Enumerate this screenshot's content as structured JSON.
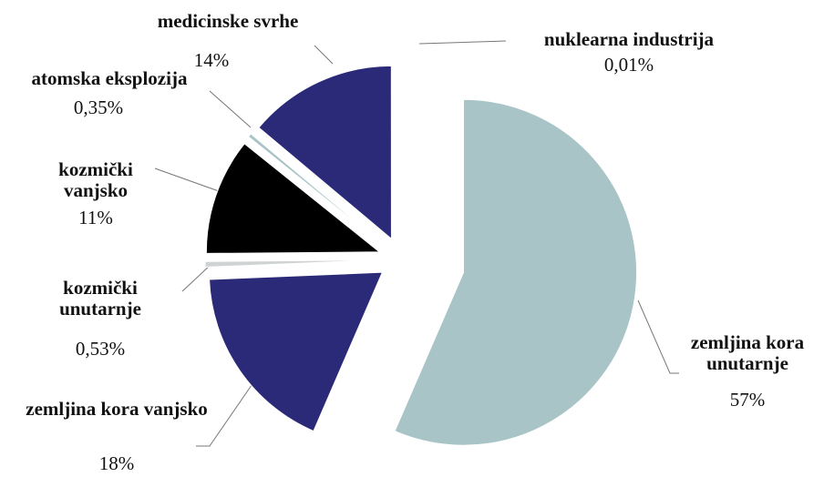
{
  "chart_data": {
    "type": "pie",
    "categories": [
      "zemljina kora unutarnje",
      "zemljina kora vanjsko",
      "kozmički unutarnje",
      "kozmički vanjsko",
      "atomska eksplozija",
      "medicinske svrhe",
      "nuklearna industrija"
    ],
    "values": [
      57,
      18,
      0.53,
      11,
      0.35,
      14,
      0.01
    ],
    "value_labels": [
      "57%",
      "18%",
      "0,53%",
      "11%",
      "0,35%",
      "14%",
      "0,01%"
    ],
    "colors": [
      "#a8c4c6",
      "#2b2a78",
      "#cfd3d4",
      "#000000",
      "#a8c4c6",
      "#2b2a78",
      "#a8c4c6"
    ]
  }
}
